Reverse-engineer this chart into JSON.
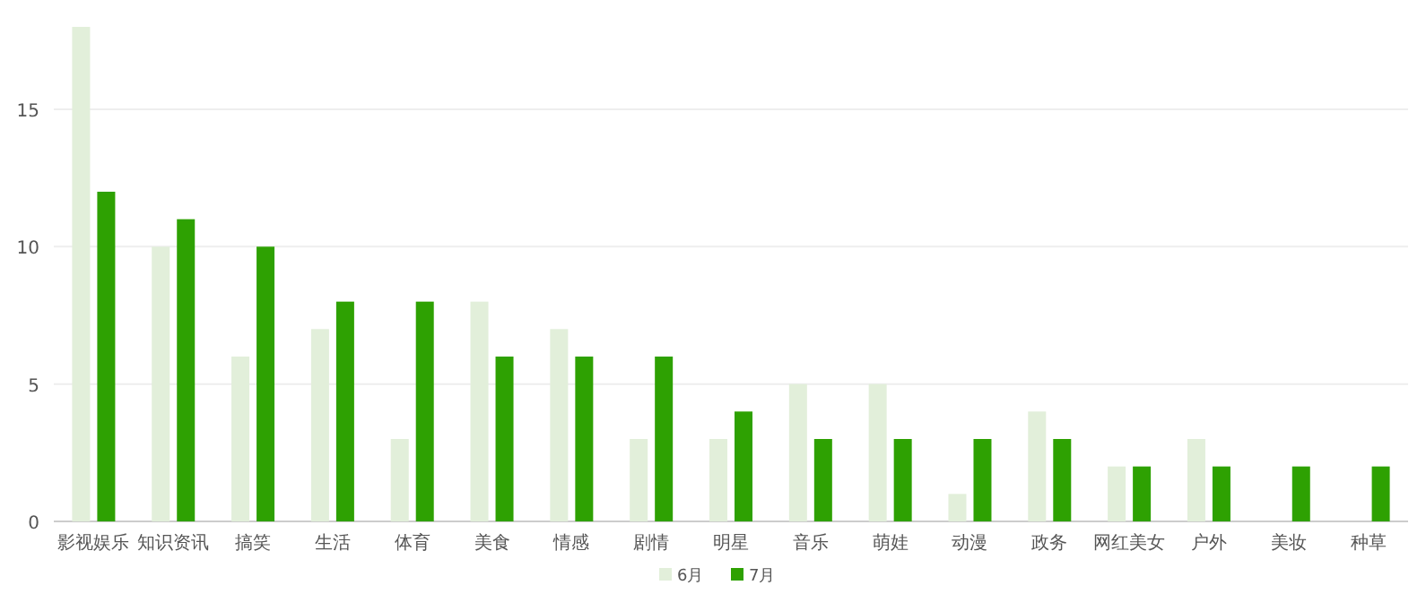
{
  "chart_data": {
    "type": "bar",
    "categories": [
      "影视娱乐",
      "知识资讯",
      "搞笑",
      "生活",
      "体育",
      "美食",
      "情感",
      "剧情",
      "明星",
      "音乐",
      "萌娃",
      "动漫",
      "政务",
      "网红美女",
      "户外",
      "美妆",
      "种草"
    ],
    "series": [
      {
        "name": "6月",
        "color": "#e2efda",
        "values": [
          18,
          10,
          6,
          7,
          3,
          8,
          7,
          3,
          3,
          5,
          5,
          1,
          4,
          2,
          3,
          0,
          0
        ]
      },
      {
        "name": "7月",
        "color": "#2ea102",
        "values": [
          12,
          11,
          10,
          8,
          8,
          6,
          6,
          6,
          4,
          3,
          3,
          3,
          3,
          2,
          2,
          2,
          2
        ]
      }
    ],
    "ylim": [
      0,
      18
    ],
    "yticks": [
      0,
      5,
      10,
      15
    ],
    "grid": "y",
    "legend": "bottom"
  }
}
